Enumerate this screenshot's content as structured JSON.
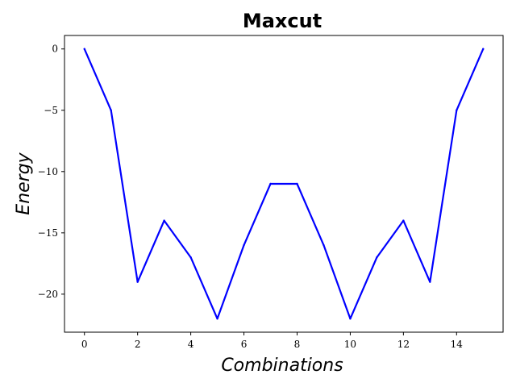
{
  "chart_data": {
    "type": "line",
    "title": "Maxcut",
    "xlabel": "Combinations",
    "ylabel": "Energy",
    "x": [
      0,
      1,
      2,
      3,
      4,
      5,
      6,
      7,
      8,
      9,
      10,
      11,
      12,
      13,
      14,
      15
    ],
    "series": [
      {
        "values": [
          0,
          -5,
          -19,
          -14,
          -17,
          -22,
          -16,
          -11,
          -11,
          -16,
          -22,
          -17,
          -14,
          -19,
          -5,
          0
        ],
        "color": "#0000ff"
      }
    ],
    "xlim": [
      -0.75,
      15.75
    ],
    "ylim": [
      -23.1,
      1.1
    ],
    "xticks": [
      0,
      2,
      4,
      6,
      8,
      10,
      12,
      14
    ],
    "yticks": [
      0,
      -5,
      -10,
      -15,
      -20
    ],
    "ytick_labels": [
      "0",
      "−5",
      "−10",
      "−15",
      "−20"
    ],
    "grid": false,
    "legend": "none"
  }
}
